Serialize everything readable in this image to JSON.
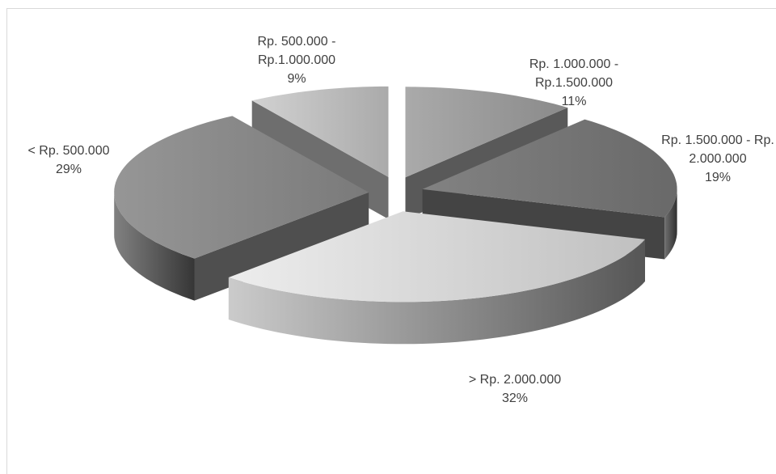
{
  "chart_data": {
    "type": "pie",
    "three_d": true,
    "exploded": true,
    "categories": [
      "< Rp. 500.000",
      "Rp. 500.000 - Rp.1.000.000",
      "Rp. 1.000.000 - Rp.1.500.000",
      "Rp. 1.500.000 - Rp. 2.000.000",
      "> Rp. 2.000.000"
    ],
    "values": [
      29,
      9,
      11,
      19,
      32
    ],
    "value_labels": [
      "29%",
      "9%",
      "11%",
      "19%",
      "32%"
    ],
    "colors": [
      "#8f8f8f",
      "#c8c8c8",
      "#a2a2a2",
      "#7c7c7c",
      "#e2e2e2"
    ]
  }
}
